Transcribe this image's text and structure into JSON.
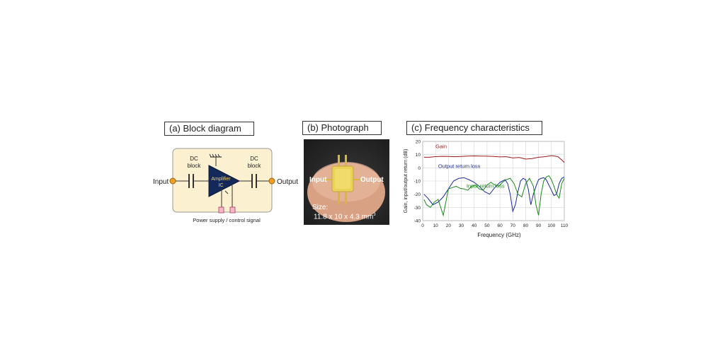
{
  "panels": {
    "a_title": "(a) Block diagram",
    "b_title": "(b) Photograph",
    "c_title": "(c) Frequency characteristics"
  },
  "block_diagram": {
    "input_label": "Input",
    "output_label": "Output",
    "dc_block_left": [
      "DC",
      "block"
    ],
    "dc_block_right": [
      "DC",
      "block"
    ],
    "amplifier_label": [
      "Amplifier",
      "IC"
    ],
    "power_label": "Power supply / control signal",
    "colors": {
      "box": "#fbf0d0",
      "box_border": "#999999",
      "amplifier": "#14285a",
      "port": "#f0a020",
      "pin": "#f4b8c8"
    }
  },
  "photograph": {
    "input_label": "Input",
    "output_label": "Output",
    "size_label": "Size:",
    "size_value": "11.8 x 10 x 4.3 mm",
    "size_unit_sup": "3"
  },
  "chart_data": {
    "type": "line",
    "xlabel": "Frequency (GHz)",
    "ylabel": "Gain, input/output return (dB)",
    "xlim": [
      0,
      110
    ],
    "ylim": [
      -40,
      20
    ],
    "xticks": [
      0,
      10,
      20,
      30,
      40,
      50,
      60,
      70,
      80,
      90,
      100,
      110
    ],
    "yticks": [
      20,
      10,
      0,
      -10,
      -20,
      -30,
      -40
    ],
    "grid": true,
    "annotations": [
      {
        "text": "Gain",
        "color": "#a01818"
      },
      {
        "text": "Output return loss",
        "color": "#1a2a9a"
      },
      {
        "text": "Input return loss",
        "color": "#1a8a1a"
      }
    ],
    "series": [
      {
        "color": "#a01818",
        "x": [
          1,
          5,
          10,
          15,
          20,
          25,
          30,
          35,
          40,
          45,
          50,
          55,
          60,
          65,
          70,
          75,
          80,
          85,
          90,
          95,
          100,
          105,
          108,
          110
        ],
        "y": [
          8,
          8,
          8.5,
          8.7,
          8.6,
          8.4,
          8.6,
          8.9,
          9,
          8.9,
          8.8,
          8.6,
          8.3,
          8.4,
          7.5,
          7.8,
          6.6,
          7,
          8,
          8.4,
          9.2,
          8.5,
          6,
          4
        ]
      },
      {
        "color": "#1a2a9a",
        "x": [
          1,
          4,
          8,
          12,
          16,
          20,
          24,
          28,
          32,
          36,
          40,
          44,
          48,
          52,
          56,
          60,
          64,
          66,
          68,
          70,
          72,
          74,
          76,
          78,
          80,
          82,
          84,
          86,
          88,
          90,
          92,
          94,
          96,
          98,
          100,
          102,
          104,
          106,
          108,
          110
        ],
        "y": [
          -20,
          -23,
          -28,
          -26,
          -22,
          -16,
          -10,
          -8,
          -7.5,
          -9,
          -11,
          -14,
          -18,
          -20,
          -15,
          -11,
          -9,
          -12,
          -20,
          -33,
          -28,
          -18,
          -10,
          -8,
          -9,
          -16,
          -28,
          -20,
          -14,
          -9,
          -8,
          -7.5,
          -9,
          -13,
          -17,
          -21,
          -20,
          -12,
          -8,
          -7
        ]
      },
      {
        "color": "#1a8a1a",
        "x": [
          1,
          3,
          6,
          9,
          12,
          14,
          16,
          18,
          20,
          23,
          26,
          29,
          32,
          35,
          38,
          41,
          44,
          47,
          50,
          53,
          56,
          59,
          62,
          65,
          68,
          71,
          74,
          77,
          80,
          83,
          86,
          88,
          90,
          92,
          94,
          96,
          98,
          100,
          102,
          104,
          106,
          108,
          110
        ],
        "y": [
          -24,
          -28,
          -30,
          -26,
          -24,
          -30,
          -36,
          -26,
          -16,
          -15,
          -14,
          -15.5,
          -16,
          -17,
          -14,
          -13,
          -16,
          -17,
          -13,
          -11,
          -13,
          -14,
          -11,
          -9,
          -8,
          -12,
          -20,
          -22,
          -12,
          -8,
          -14,
          -28,
          -36,
          -20,
          -10,
          -7,
          -6,
          -9,
          -14,
          -20,
          -23,
          -12,
          -8
        ]
      }
    ]
  }
}
